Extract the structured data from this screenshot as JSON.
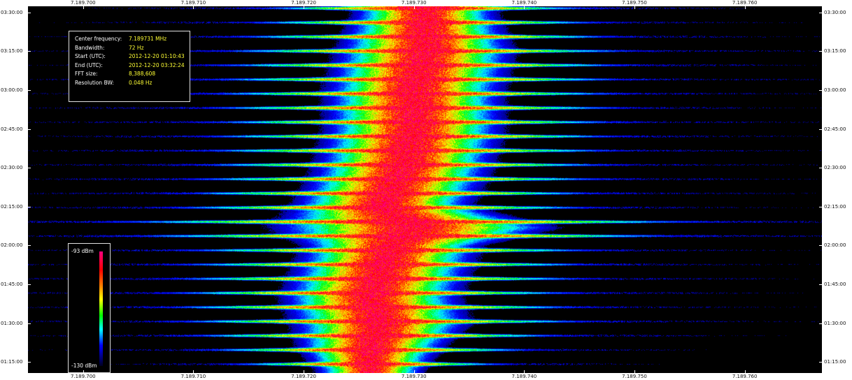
{
  "info": {
    "rows": [
      {
        "label": "Center frequency:",
        "value": "7.189731 MHz"
      },
      {
        "label": "Bandwidth:",
        "value": "72 Hz"
      },
      {
        "label": "Start (UTC):",
        "value": "2012-12-20 01:10:43"
      },
      {
        "label": "End (UTC):",
        "value": "2012-12-20 03:32:24"
      },
      {
        "label": "FFT size:",
        "value": "8,388,608"
      },
      {
        "label": "Resolution BW:",
        "value": "0.048 Hz"
      }
    ]
  },
  "colorbar": {
    "max_label": "-93 dBm",
    "min_label": "-130 dBm",
    "colors": [
      "#ff0080",
      "#ff0000",
      "#ff8000",
      "#ffff00",
      "#00ff00",
      "#00ffff",
      "#0000ff",
      "#000020"
    ]
  },
  "chart_data": {
    "type": "heatmap",
    "title": "",
    "xlabel": "",
    "ylabel": "",
    "x_ticks": [
      "7.189.700",
      "7.189.710",
      "7.189.720",
      "7.189.730",
      "7.189.740",
      "7.189.750",
      "7.189.760"
    ],
    "x_tick_values_MHz": [
      7.1897,
      7.18971,
      7.18972,
      7.18973,
      7.18974,
      7.18975,
      7.18976
    ],
    "xlim_MHz": [
      7.189695,
      7.189767
    ],
    "y_ticks": [
      "03:30:00",
      "03:15:00",
      "03:00:00",
      "02:45:00",
      "02:30:00",
      "02:15:00",
      "02:00:00",
      "01:45:00",
      "01:30:00",
      "01:15:00"
    ],
    "ylim_utc": [
      "01:10:43",
      "03:32:24"
    ],
    "value_range_dBm": [
      -130,
      -93
    ],
    "signal_trace": [
      {
        "time": "01:12:00",
        "center_MHz": 7.189726,
        "width_Hz": 3
      },
      {
        "time": "01:20:00",
        "center_MHz": 7.189726,
        "width_Hz": 4
      },
      {
        "time": "01:30:00",
        "center_MHz": 7.189727,
        "width_Hz": 5
      },
      {
        "time": "01:40:00",
        "center_MHz": 7.189726,
        "width_Hz": 5
      },
      {
        "time": "01:50:00",
        "center_MHz": 7.189727,
        "width_Hz": 5
      },
      {
        "time": "02:00:00",
        "center_MHz": 7.189728,
        "width_Hz": 5
      },
      {
        "time": "02:07:00",
        "center_MHz": 7.18973,
        "width_Hz": 8
      },
      {
        "time": "02:15:00",
        "center_MHz": 7.189727,
        "width_Hz": 5
      },
      {
        "time": "02:22:00",
        "center_MHz": 7.189728,
        "width_Hz": 5
      },
      {
        "time": "02:30:00",
        "center_MHz": 7.189729,
        "width_Hz": 5
      },
      {
        "time": "02:45:00",
        "center_MHz": 7.18973,
        "width_Hz": 5
      },
      {
        "time": "03:00:00",
        "center_MHz": 7.18973,
        "width_Hz": 5
      },
      {
        "time": "03:15:00",
        "center_MHz": 7.189731,
        "width_Hz": 5
      },
      {
        "time": "03:30:00",
        "center_MHz": 7.189731,
        "width_Hz": 4
      }
    ]
  }
}
